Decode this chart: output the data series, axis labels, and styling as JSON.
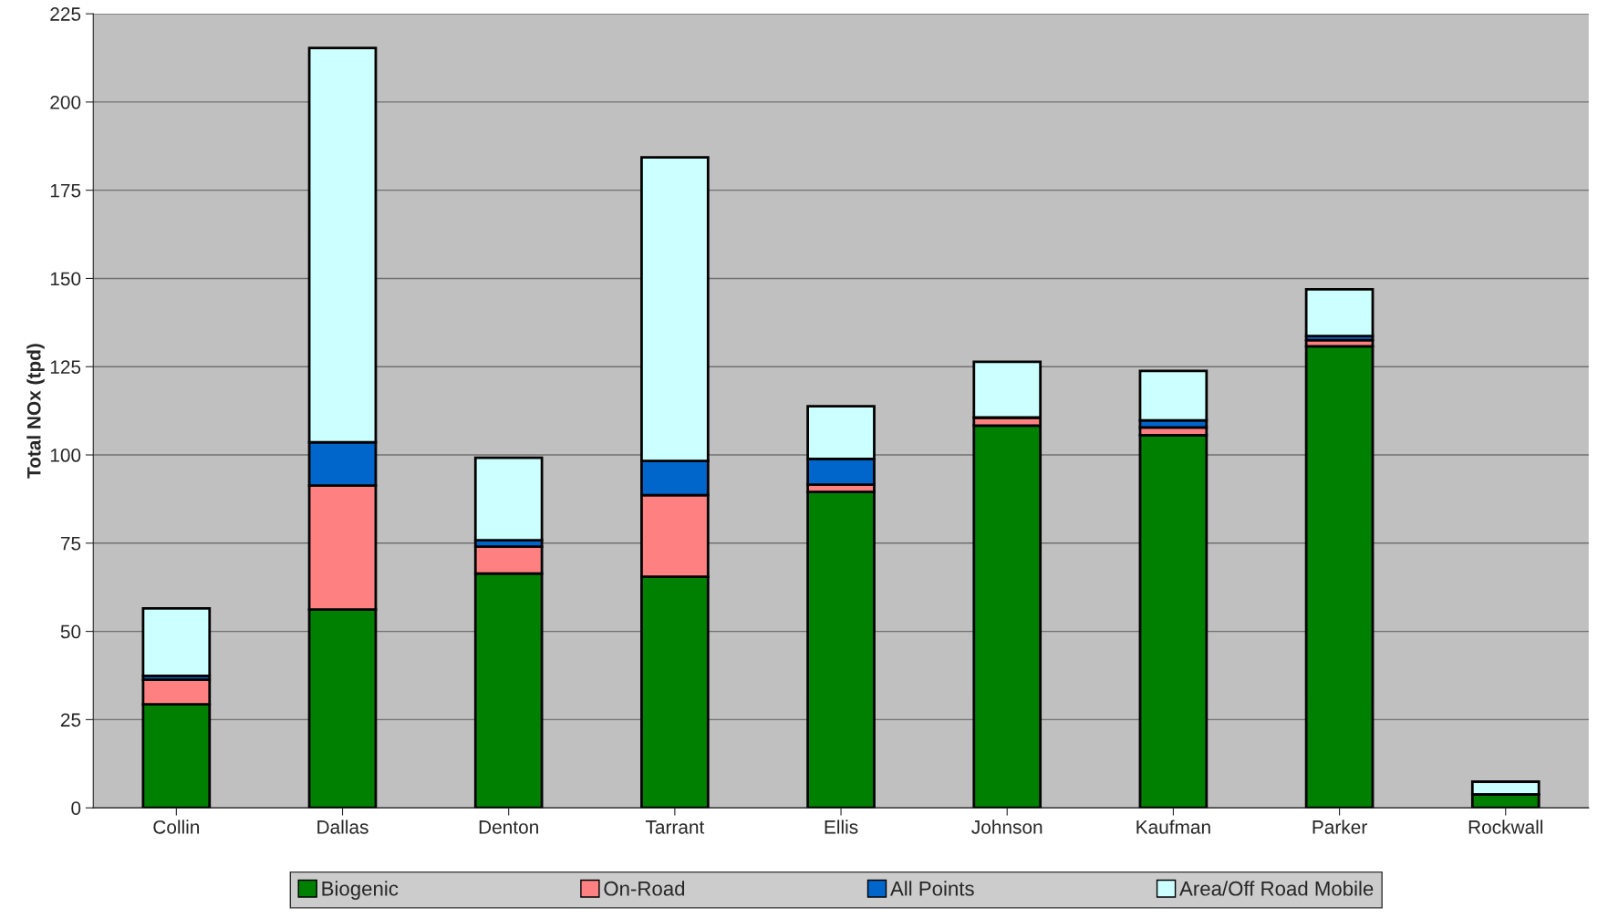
{
  "chart_data": {
    "type": "bar",
    "stacked": true,
    "ylabel": "Total NOx (tpd)",
    "categories": [
      "Collin",
      "Dallas",
      "Denton",
      "Tarrant",
      "Ellis",
      "Johnson",
      "Kaufman",
      "Parker",
      "Rockwall"
    ],
    "series": [
      {
        "name": "Biogenic",
        "color": "#008000",
        "values": [
          29.3,
          56.2,
          66.4,
          65.5,
          89.5,
          108.3,
          105.6,
          130.8,
          3.8
        ]
      },
      {
        "name": "On-Road",
        "color": "#ff8080",
        "values": [
          7.0,
          35.1,
          7.6,
          23.1,
          2.1,
          2.3,
          2.2,
          1.7,
          null
        ]
      },
      {
        "name": "All Points",
        "color": "#0066cc",
        "values": [
          1.1,
          12.3,
          1.8,
          9.7,
          7.3,
          null,
          2.0,
          1.2,
          null
        ]
      },
      {
        "name": "Area/Off Road Mobile",
        "color": "#ccffff",
        "values": [
          19.1,
          111.7,
          23.4,
          86.0,
          14.9,
          15.8,
          14.0,
          13.2,
          3.6
        ]
      }
    ],
    "ylim": [
      0,
      225
    ],
    "yticks": [
      0,
      25,
      50,
      75,
      100,
      125,
      150,
      175,
      200,
      225
    ],
    "grid": "y",
    "legend": "bottom"
  }
}
